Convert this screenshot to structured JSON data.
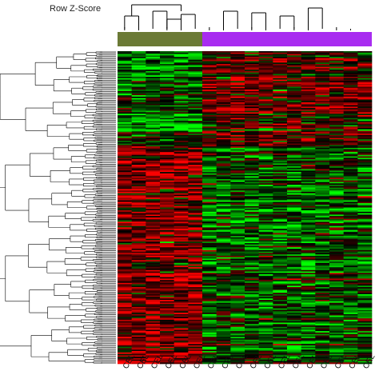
{
  "legend": {
    "label": "Row Z-Score"
  },
  "chart_data": {
    "type": "heatmap",
    "legend_title": "Row Z-Score",
    "palette": {
      "low": "#00ff00",
      "mid": "#000000",
      "high": "#ff0000"
    },
    "column_groups": [
      {
        "color": "#6b7a36",
        "count": 6
      },
      {
        "color": "#a82cf0",
        "count": 12
      }
    ],
    "column_labels": [
      "CEL",
      "CEL",
      "CEL",
      "CEL",
      "CEL",
      "CEL",
      "CEL",
      "CEL",
      "CEL",
      "CEL",
      "CEL",
      "CEL",
      "CEL",
      "CEL",
      "CEL",
      "CEL",
      "CEL",
      "CEL"
    ],
    "row_count": 220,
    "row_blocks": [
      {
        "rows": 25,
        "group1_mean": -0.9,
        "group2_mean": 0.5
      },
      {
        "rows": 20,
        "group1_mean": -0.4,
        "group2_mean": 0.7
      },
      {
        "rows": 12,
        "group1_mean": -1.4,
        "group2_mean": 0.3
      },
      {
        "rows": 10,
        "group1_mean": -0.3,
        "group2_mean": 0.4
      },
      {
        "rows": 153,
        "group1_mean": 0.9,
        "group2_mean": -0.6
      }
    ],
    "grid": false
  }
}
